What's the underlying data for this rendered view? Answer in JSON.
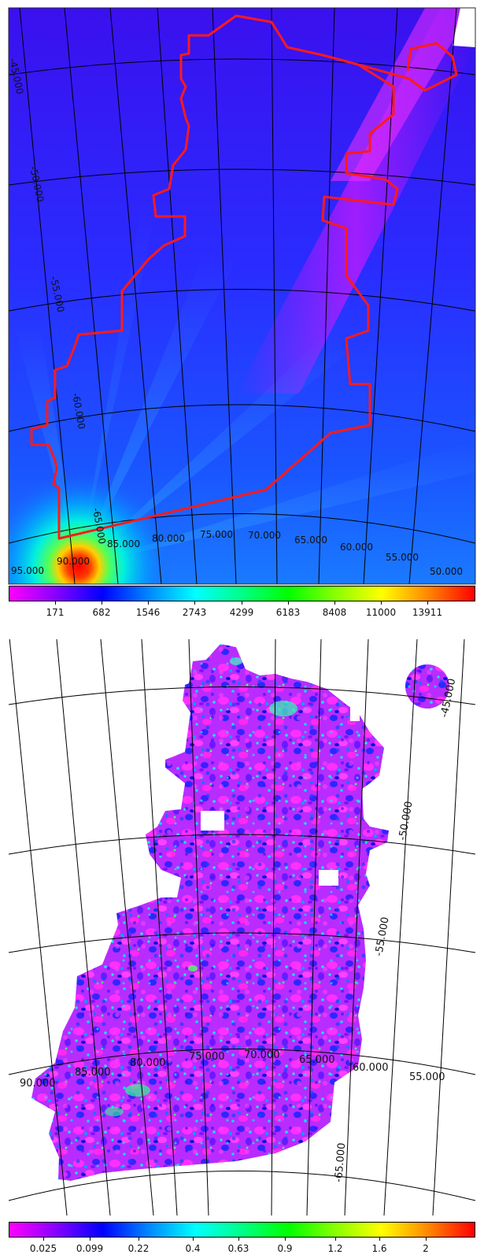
{
  "top_map": {
    "ra_labels": [
      "95.000",
      "90.000",
      "85.000",
      "80.000",
      "75.000",
      "70.000",
      "65.000",
      "60.000",
      "55.000",
      "50.000"
    ],
    "dec_labels": [
      "-45.000",
      "-50.000",
      "-55.000",
      "-60.000",
      "-65.000"
    ],
    "colorbar_ticks": [
      "171",
      "682",
      "1546",
      "2743",
      "4299",
      "6183",
      "8408",
      "11000",
      "13911"
    ],
    "colors": {
      "outline": "#ff1a1a",
      "grid": "#000000"
    }
  },
  "bottom_map": {
    "ra_labels": [
      "90.000",
      "85.000",
      "80.000",
      "75.000",
      "70.000",
      "65.000",
      "60.000",
      "55.000"
    ],
    "dec_labels": [
      "-45.000",
      "-50.000",
      "-55.000",
      "-65.000"
    ],
    "colorbar_ticks": [
      "0.025",
      "0.099",
      "0.22",
      "0.4",
      "0.63",
      "0.9",
      "1.2",
      "1.6",
      "2"
    ],
    "colors": {
      "grid": "#000000"
    }
  },
  "colormap": [
    "#ff00ff",
    "#8800ff",
    "#0000ff",
    "#0088ff",
    "#00ffff",
    "#00ff88",
    "#00ff00",
    "#88ff00",
    "#ffff00",
    "#ff8800",
    "#ff0000"
  ]
}
